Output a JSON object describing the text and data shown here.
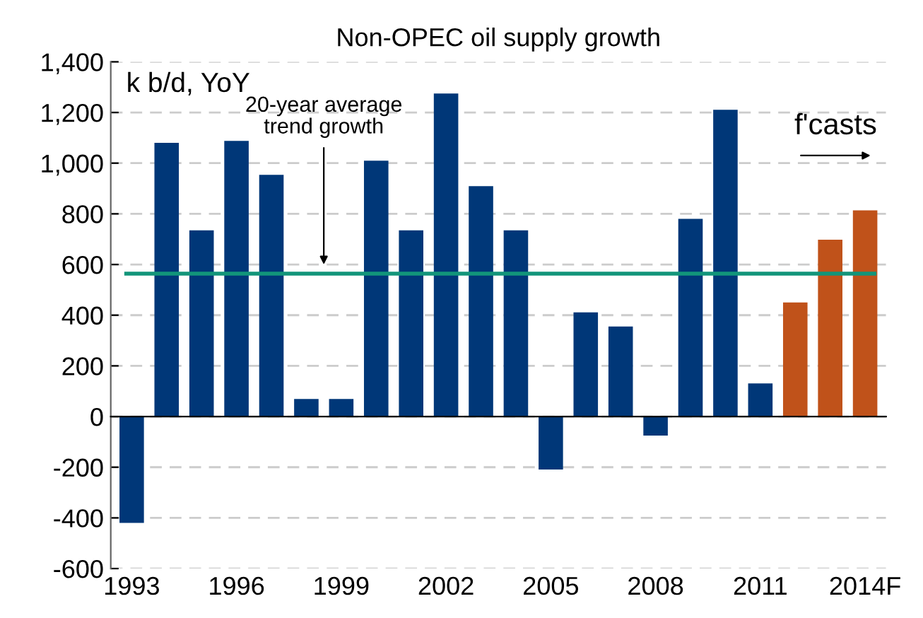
{
  "chart_data": {
    "type": "bar",
    "title": "Non-OPEC oil supply growth",
    "ylabel": "k b/d, YoY",
    "categories": [
      "1993",
      null,
      null,
      "1996",
      null,
      null,
      "1999",
      null,
      null,
      "2002",
      null,
      null,
      "2005",
      null,
      null,
      "2008",
      null,
      null,
      "2011",
      null,
      null,
      "2014F"
    ],
    "values": [
      -420,
      1080,
      735,
      1088,
      954,
      69,
      69,
      1010,
      735,
      1275,
      909,
      735,
      -209,
      411,
      355,
      -75,
      780,
      1211,
      131,
      450,
      698,
      814
    ],
    "colors": [
      "#003778",
      "#003778",
      "#003778",
      "#003778",
      "#003778",
      "#003778",
      "#003778",
      "#003778",
      "#003778",
      "#003778",
      "#003778",
      "#003778",
      "#003778",
      "#003778",
      "#003778",
      "#003778",
      "#003778",
      "#003778",
      "#003778",
      "#c0521a",
      "#c0521a",
      "#c0521a"
    ],
    "ylim": [
      -600,
      1400
    ],
    "yticks": [
      {
        "value": -600,
        "label": "-600"
      },
      {
        "value": -400,
        "label": "-400"
      },
      {
        "value": -200,
        "label": "-200"
      },
      0,
      200,
      400,
      600,
      800,
      {
        "value": 1000,
        "label": "1,000"
      },
      {
        "value": 1200,
        "label": "1,200"
      },
      {
        "value": 1400,
        "label": "1,400"
      }
    ],
    "ref_lines": [
      {
        "axis": "y",
        "value": 564,
        "color": "#12957a"
      }
    ],
    "annotations": [
      "20-year average\ntrend growth",
      "f'casts"
    ],
    "grid": "y"
  }
}
